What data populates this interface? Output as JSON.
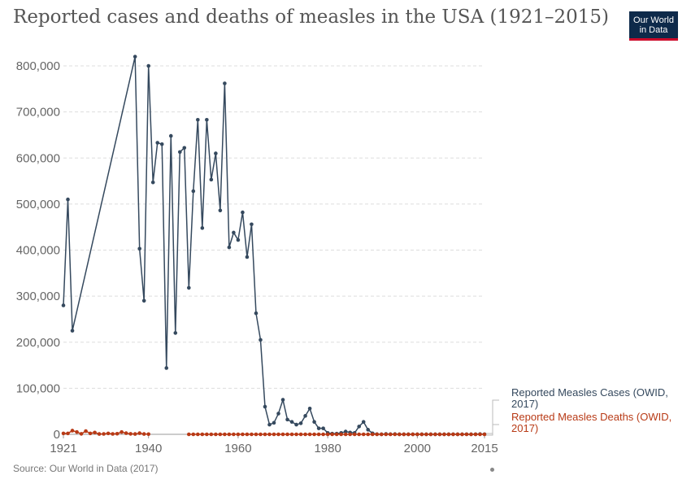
{
  "header": {
    "title": "Reported cases and deaths of measles in the USA (1921–2015)",
    "logo_line1": "Our World",
    "logo_line2": "in Data"
  },
  "footer": {
    "source": "Source: Our World in Data (2017)"
  },
  "colors": {
    "cases": "#35495e",
    "deaths": "#b83a16",
    "grid": "#dddddd",
    "axis_text": "#666666",
    "logo_bg": "#0e2a4a",
    "logo_accent": "#cc0a2a"
  },
  "chart_data": {
    "type": "line",
    "title": "Reported cases and deaths of measles in the USA (1921–2015)",
    "xlim": [
      1921,
      2015
    ],
    "ylim": [
      0,
      800000
    ],
    "x_ticks": [
      1921,
      1940,
      1960,
      1980,
      2000,
      2015
    ],
    "x_tick_labels": [
      "1921",
      "1940",
      "1960",
      "1980",
      "2000",
      "2015"
    ],
    "y_ticks": [
      0,
      100000,
      200000,
      300000,
      400000,
      500000,
      600000,
      700000,
      800000
    ],
    "y_tick_labels": [
      "0",
      "100,000",
      "200,000",
      "300,000",
      "400,000",
      "500,000",
      "600,000",
      "700,000",
      "800,000"
    ],
    "grid": "horizontal dashed",
    "legend": "right, inline at line ends",
    "series": [
      {
        "name": "Reported Measles Cases (OWID, 2017)",
        "color": "#35495e",
        "points": [
          [
            1921,
            280000
          ],
          [
            1922,
            510000
          ],
          [
            1923,
            225000
          ],
          [
            1937,
            820000
          ],
          [
            1938,
            403000
          ],
          [
            1939,
            290000
          ],
          [
            1940,
            800000
          ],
          [
            1941,
            547000
          ],
          [
            1942,
            633000
          ],
          [
            1943,
            630000
          ],
          [
            1944,
            144000
          ],
          [
            1945,
            648000
          ],
          [
            1946,
            220000
          ],
          [
            1947,
            613000
          ],
          [
            1948,
            622000
          ],
          [
            1949,
            318000
          ],
          [
            1950,
            528000
          ],
          [
            1951,
            683000
          ],
          [
            1952,
            448000
          ],
          [
            1953,
            683000
          ],
          [
            1954,
            553000
          ],
          [
            1955,
            610000
          ],
          [
            1956,
            486000
          ],
          [
            1957,
            762000
          ],
          [
            1958,
            406000
          ],
          [
            1959,
            438000
          ],
          [
            1960,
            422000
          ],
          [
            1961,
            482000
          ],
          [
            1962,
            385000
          ],
          [
            1963,
            456000
          ],
          [
            1964,
            263000
          ],
          [
            1965,
            205000
          ],
          [
            1966,
            60000
          ],
          [
            1967,
            21000
          ],
          [
            1968,
            25000
          ],
          [
            1969,
            45000
          ],
          [
            1970,
            75000
          ],
          [
            1971,
            32000
          ],
          [
            1972,
            27000
          ],
          [
            1973,
            21000
          ],
          [
            1974,
            24000
          ],
          [
            1975,
            40000
          ],
          [
            1976,
            56000
          ],
          [
            1977,
            27000
          ],
          [
            1978,
            13000
          ],
          [
            1979,
            13000
          ],
          [
            1980,
            3000
          ],
          [
            1981,
            1500
          ],
          [
            1982,
            1500
          ],
          [
            1983,
            3000
          ],
          [
            1984,
            6000
          ],
          [
            1985,
            4000
          ],
          [
            1986,
            3000
          ],
          [
            1987,
            17000
          ],
          [
            1988,
            27000
          ],
          [
            1989,
            10000
          ],
          [
            1990,
            2200
          ],
          [
            1991,
            300
          ],
          [
            1992,
            100
          ],
          [
            1993,
            900
          ],
          [
            1994,
            300
          ],
          [
            1995,
            500
          ],
          [
            1996,
            100
          ],
          [
            1997,
            100
          ],
          [
            1998,
            100
          ],
          [
            1999,
            100
          ],
          [
            2000,
            80
          ],
          [
            2001,
            100
          ],
          [
            2002,
            40
          ],
          [
            2003,
            60
          ],
          [
            2004,
            40
          ],
          [
            2005,
            70
          ],
          [
            2006,
            60
          ],
          [
            2007,
            40
          ],
          [
            2008,
            140
          ],
          [
            2009,
            70
          ],
          [
            2010,
            60
          ],
          [
            2011,
            220
          ],
          [
            2012,
            55
          ],
          [
            2013,
            190
          ],
          [
            2014,
            670
          ],
          [
            2015,
            190
          ]
        ]
      },
      {
        "name": "Reported Measles Deaths (OWID, 2017)",
        "color": "#b83a16",
        "points": [
          [
            1921,
            2000
          ],
          [
            1922,
            2000
          ],
          [
            1923,
            8000
          ],
          [
            1924,
            5000
          ],
          [
            1925,
            1000
          ],
          [
            1926,
            7000
          ],
          [
            1927,
            2000
          ],
          [
            1928,
            4000
          ],
          [
            1929,
            700
          ],
          [
            1930,
            900
          ],
          [
            1931,
            2000
          ],
          [
            1932,
            900
          ],
          [
            1933,
            1300
          ],
          [
            1934,
            5000
          ],
          [
            1935,
            2500
          ],
          [
            1936,
            1000
          ],
          [
            1937,
            700
          ],
          [
            1938,
            2500
          ],
          [
            1939,
            700
          ],
          [
            1940,
            400
          ],
          [
            1949,
            0
          ],
          [
            1950,
            0
          ],
          [
            1951,
            0
          ],
          [
            1952,
            0
          ],
          [
            1953,
            0
          ],
          [
            1954,
            0
          ],
          [
            1955,
            0
          ],
          [
            1956,
            0
          ],
          [
            1957,
            0
          ],
          [
            1958,
            0
          ],
          [
            1959,
            0
          ],
          [
            1960,
            0
          ],
          [
            1961,
            0
          ],
          [
            1962,
            0
          ],
          [
            1963,
            0
          ],
          [
            1964,
            0
          ],
          [
            1965,
            0
          ],
          [
            1966,
            0
          ],
          [
            1967,
            0
          ],
          [
            1968,
            0
          ],
          [
            1969,
            0
          ],
          [
            1970,
            0
          ],
          [
            1971,
            0
          ],
          [
            1972,
            0
          ],
          [
            1973,
            0
          ],
          [
            1974,
            0
          ],
          [
            1975,
            0
          ],
          [
            1976,
            0
          ],
          [
            1977,
            0
          ],
          [
            1978,
            0
          ],
          [
            1979,
            0
          ],
          [
            1980,
            0
          ],
          [
            1981,
            0
          ],
          [
            1982,
            0
          ],
          [
            1983,
            0
          ],
          [
            1984,
            0
          ],
          [
            1985,
            0
          ],
          [
            1986,
            0
          ],
          [
            1987,
            0
          ],
          [
            1988,
            0
          ],
          [
            1989,
            0
          ],
          [
            1990,
            0
          ],
          [
            1991,
            0
          ],
          [
            1992,
            0
          ],
          [
            1993,
            0
          ],
          [
            1994,
            0
          ],
          [
            1995,
            0
          ],
          [
            1996,
            0
          ],
          [
            1997,
            0
          ],
          [
            1998,
            0
          ],
          [
            1999,
            0
          ],
          [
            2000,
            0
          ],
          [
            2001,
            0
          ],
          [
            2002,
            0
          ],
          [
            2003,
            0
          ],
          [
            2004,
            0
          ],
          [
            2005,
            0
          ],
          [
            2006,
            0
          ],
          [
            2007,
            0
          ],
          [
            2008,
            0
          ],
          [
            2009,
            0
          ],
          [
            2010,
            0
          ],
          [
            2011,
            0
          ],
          [
            2012,
            0
          ],
          [
            2013,
            0
          ],
          [
            2014,
            0
          ],
          [
            2015,
            0
          ]
        ]
      }
    ],
    "legend_entries": [
      {
        "line1": "Reported Measles Cases (OWID,",
        "line2": "2017)"
      },
      {
        "line1": "Reported Measles Deaths (OWID,",
        "line2": "2017)"
      }
    ]
  }
}
